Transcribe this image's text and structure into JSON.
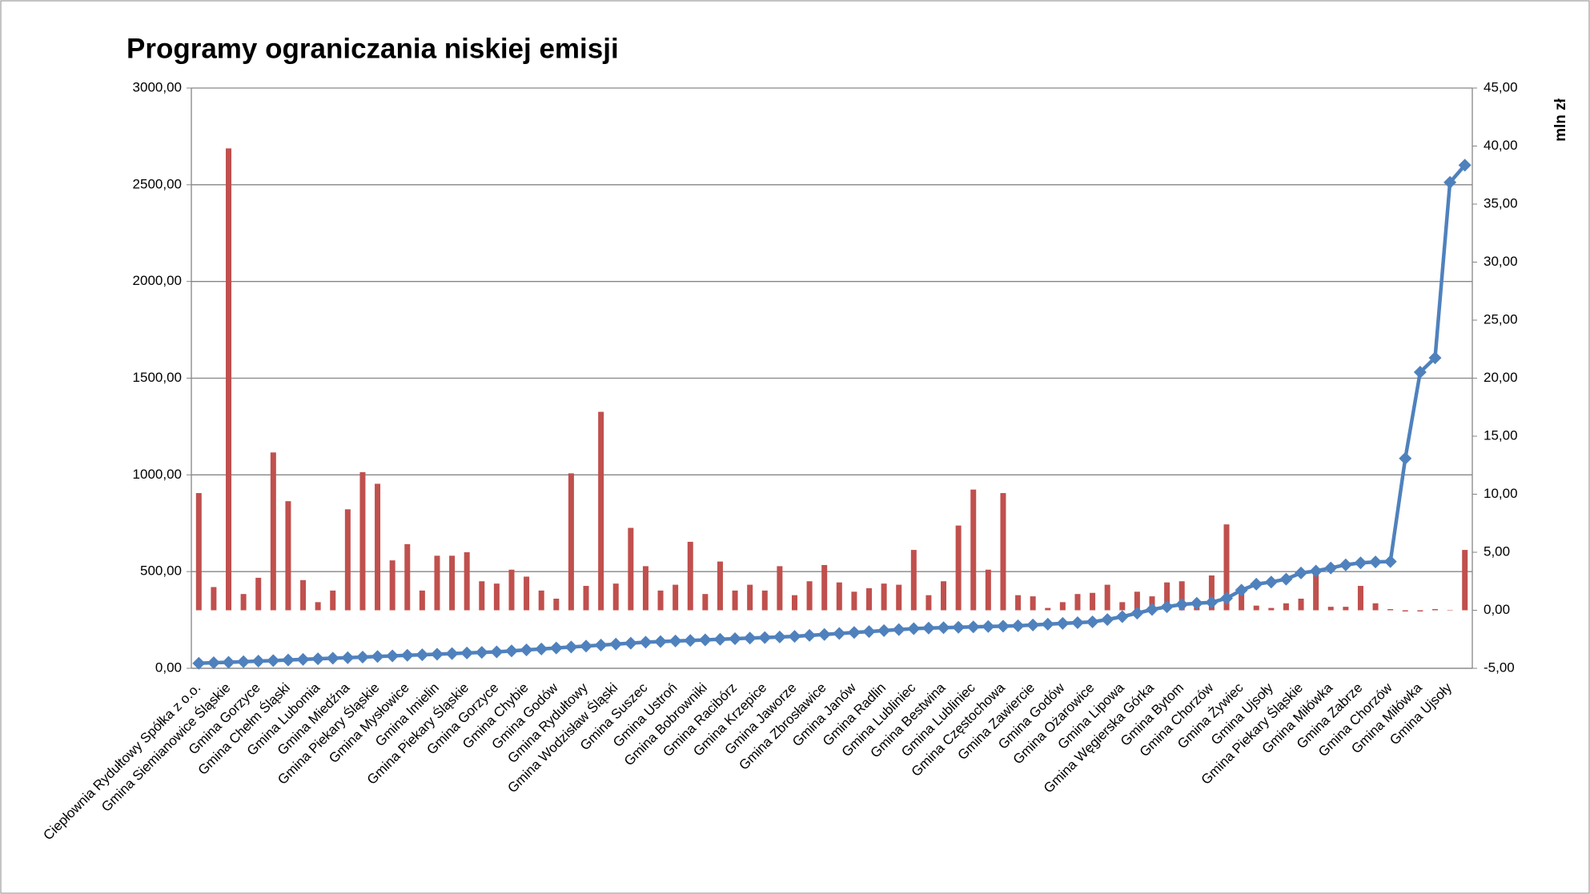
{
  "chart_data": {
    "type": "bar_line",
    "title": "Programy ograniczania niskiej emisji",
    "y2label": "mln zł",
    "categories": [
      "Ciepłownia Rydułtowy Spółka z o.o.",
      null,
      "Gmina Siemianowice Śląskie",
      null,
      "Gmina Gorzyce",
      null,
      "Gmina Chełm Śląski",
      null,
      "Gmina Lubomia",
      null,
      "Gmina Miedźna",
      null,
      "Gmina Piekary Śląskie",
      null,
      "Gmina Mysłowice",
      null,
      "Gmina Imielin",
      null,
      "Gmina Piekary Śląskie",
      null,
      "Gmina Gorzyce",
      null,
      "Gmina Chybie",
      null,
      "Gmina Godów",
      null,
      "Gmina Rydułtowy",
      null,
      "Gmina Wodzisław Śląski",
      null,
      "Gmina Suszec",
      null,
      "Gmina Ustroń",
      null,
      "Gmina Bobrowniki",
      null,
      "Gmina Racibórz",
      null,
      "Gmina Krzepice",
      null,
      "Gmina Jaworze",
      null,
      "Gmina Zbrosławice",
      null,
      "Gmina Janów",
      null,
      "Gmina Radlin",
      null,
      "Gmina Lubliniec",
      null,
      "Gmina Bestwina",
      null,
      "Gmina Lubliniec",
      null,
      "Gmina Częstochowa",
      null,
      "Gmina Zawiercie",
      null,
      "Gmina Godów",
      null,
      "Gmina Ożarowice",
      null,
      "Gmina Lipowa",
      null,
      "Gmina Węgierska Górka",
      null,
      "Gmina Bytom",
      null,
      "Gmina Chorzów",
      null,
      "Gmina Żywiec",
      null,
      "Gmina Ujsoły",
      null,
      "Gmina Piekary Śląskie",
      null,
      "Gmina Miłówka",
      null,
      "Gmina Zabrze",
      null,
      "Gmina Chorzów",
      null,
      "Gmina Miłówka",
      null,
      "Gmina Ujsoły",
      null
    ],
    "series": [
      {
        "type": "bar",
        "axis": "y2",
        "color": "#c0504d",
        "values": [
          10.1,
          2.0,
          39.8,
          1.4,
          2.8,
          13.6,
          9.4,
          2.6,
          0.7,
          1.7,
          8.7,
          11.9,
          10.9,
          4.3,
          5.7,
          1.7,
          4.7,
          4.7,
          5.0,
          2.5,
          2.3,
          3.5,
          2.9,
          1.7,
          1.0,
          11.8,
          2.1,
          17.1,
          2.3,
          7.1,
          3.8,
          1.7,
          2.2,
          5.9,
          1.4,
          4.2,
          1.7,
          2.2,
          1.7,
          3.8,
          1.3,
          2.5,
          3.9,
          2.4,
          1.6,
          1.9,
          2.3,
          2.2,
          5.2,
          1.3,
          2.5,
          7.3,
          10.4,
          3.5,
          10.1,
          1.3,
          1.2,
          0.2,
          0.7,
          1.4,
          1.5,
          2.2,
          0.7,
          1.6,
          1.2,
          2.4,
          2.5,
          0.3,
          3.0,
          7.4,
          1.5,
          0.4,
          0.2,
          0.6,
          1.0,
          3.2,
          0.3,
          0.3,
          2.1,
          0.6,
          0.1,
          -0.1,
          -0.1,
          0.1,
          0,
          5.2
        ]
      },
      {
        "type": "line",
        "axis": "y",
        "color": "#4f81bd",
        "values": [
          26,
          29,
          31,
          34,
          37,
          40,
          43,
          46,
          49,
          52,
          55,
          58,
          61,
          64,
          67,
          70,
          73,
          76,
          79,
          82,
          85,
          90,
          95,
          100,
          105,
          110,
          115,
          120,
          125,
          130,
          135,
          138,
          141,
          144,
          147,
          150,
          153,
          156,
          159,
          162,
          165,
          170,
          175,
          180,
          185,
          190,
          195,
          200,
          205,
          208,
          210,
          212,
          214,
          216,
          218,
          220,
          224,
          228,
          232,
          236,
          240,
          252,
          267,
          285,
          304,
          318,
          330,
          336,
          341,
          362,
          404,
          435,
          446,
          461,
          493,
          503,
          519,
          535,
          545,
          550,
          552,
          1085,
          1531,
          1605,
          2512,
          2601
        ]
      }
    ],
    "ylim": [
      0,
      3000
    ],
    "yticks": [
      {
        "value": 0,
        "label": "0,00"
      },
      {
        "value": 500,
        "label": "500,00"
      },
      {
        "value": 1000,
        "label": "1000,00"
      },
      {
        "value": 1500,
        "label": "1500,00"
      },
      {
        "value": 2000,
        "label": "2000,00"
      },
      {
        "value": 2500,
        "label": "2500,00"
      },
      {
        "value": 3000,
        "label": "3000,00"
      }
    ],
    "y2lim": [
      -5,
      45
    ],
    "y2ticks": [
      {
        "value": -5,
        "label": "-5,00"
      },
      {
        "value": 0,
        "label": "0,00"
      },
      {
        "value": 5,
        "label": "5,00"
      },
      {
        "value": 10,
        "label": "10,00"
      },
      {
        "value": 15,
        "label": "15,00"
      },
      {
        "value": 20,
        "label": "20,00"
      },
      {
        "value": 25,
        "label": "25,00"
      },
      {
        "value": 30,
        "label": "30,00"
      },
      {
        "value": 35,
        "label": "35,00"
      },
      {
        "value": 40,
        "label": "40,00"
      },
      {
        "value": 45,
        "label": "45,00"
      }
    ],
    "grid": true
  }
}
